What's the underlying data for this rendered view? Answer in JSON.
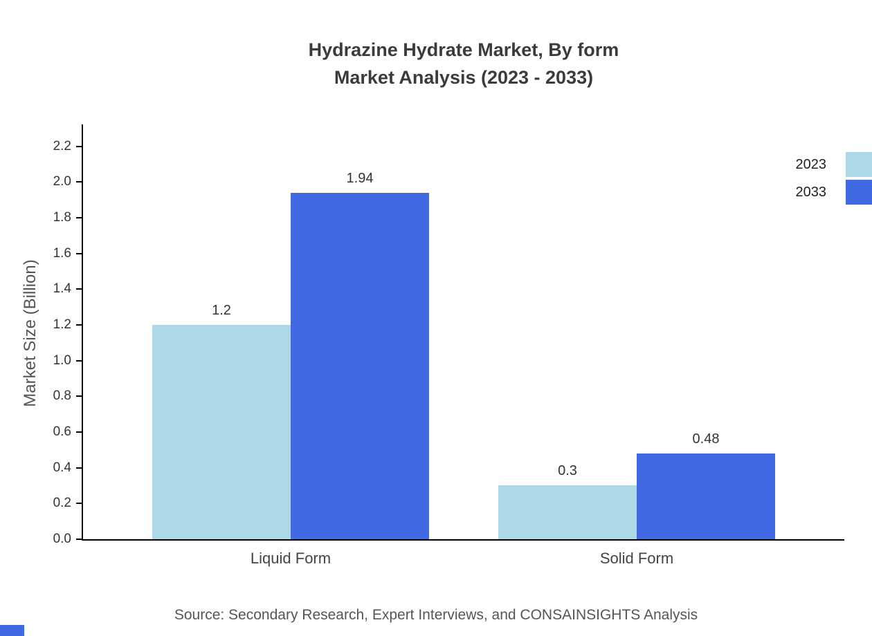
{
  "title": {
    "line1": "Hydrazine Hydrate Market, By form",
    "line2": "Market Analysis (2023 - 2033)"
  },
  "chart_data": {
    "type": "bar",
    "categories": [
      "Liquid Form",
      "Solid Form"
    ],
    "series": [
      {
        "name": "2023",
        "color": "#add8e6",
        "values": [
          1.2,
          0.3
        ]
      },
      {
        "name": "2033",
        "color": "#4169e1",
        "values": [
          1.94,
          0.48
        ]
      }
    ],
    "value_labels": [
      [
        "1.2",
        "0.3"
      ],
      [
        "1.94",
        "0.48"
      ]
    ],
    "title": "Hydrazine Hydrate Market, By form Market Analysis (2023 - 2033)",
    "xlabel": "",
    "ylabel": "Market Size (Billion)",
    "ylim": [
      0,
      2.2
    ],
    "ytick_step": 0.2,
    "grid": false,
    "legend_position": "top-right"
  },
  "source_note": "Source: Secondary Research, Expert Interviews, and CONSAINSIGHTS Analysis",
  "colors": {
    "series_2023": "#add8e6",
    "series_2033": "#4169e1",
    "axis": "#000000",
    "text": "#3a3a3a"
  }
}
